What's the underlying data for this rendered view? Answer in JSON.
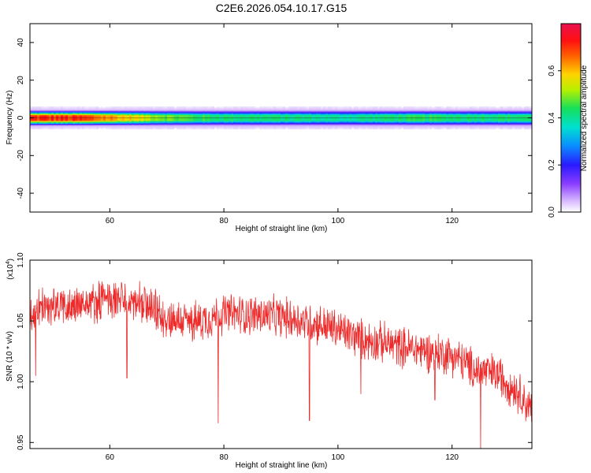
{
  "title": "C2E6.2026.054.10.17.G15",
  "colors": {
    "snr_line": "#ee2b2b",
    "axis": "#000000",
    "background": "#ffffff"
  },
  "chart_data": [
    {
      "type": "heatmap",
      "xlabel": "Height of straight line (km)",
      "ylabel": "Frequency (Hz)",
      "xlim": [
        46,
        134
      ],
      "ylim": [
        -50,
        50
      ],
      "x_ticks": [
        60,
        80,
        100,
        120
      ],
      "y_ticks": [
        40,
        20,
        0,
        -20,
        -40
      ],
      "x_tick_labels": [
        "60",
        "80",
        "100",
        "120"
      ],
      "y_tick_labels": [
        "40",
        "20",
        "0",
        "-20",
        "-40"
      ],
      "band_center_hz": 0,
      "band_halfwidth_hz": 4,
      "amplitude_profile": {
        "x": [
          46,
          50,
          55,
          60,
          65,
          70,
          75,
          80,
          85,
          90,
          95,
          100,
          105,
          110,
          115,
          120,
          125,
          130,
          134
        ],
        "peak": [
          0.7,
          0.7,
          0.69,
          0.62,
          0.55,
          0.48,
          0.44,
          0.42,
          0.42,
          0.41,
          0.4,
          0.38,
          0.4,
          0.42,
          0.43,
          0.42,
          0.42,
          0.42,
          0.42
        ]
      },
      "colorbar": {
        "label": "Normalized spectral amplitude",
        "min": 0.0,
        "max": 0.8,
        "ticks": [
          0.0,
          0.2,
          0.4,
          0.6
        ],
        "tick_labels": [
          "0.0",
          "0.2",
          "0.4",
          "0.6"
        ],
        "colormap": "rainbow"
      }
    },
    {
      "type": "line",
      "xlabel": "Height of straight line (km)",
      "ylabel": "SNR (10 * v/v)",
      "ylabel_exponent_base": "(x10",
      "ylabel_exponent_power": "4",
      "ylabel_exponent_close": ")",
      "xlim": [
        46,
        134
      ],
      "ylim": [
        0.945,
        1.1
      ],
      "x_ticks": [
        60,
        80,
        100,
        120
      ],
      "x_tick_labels": [
        "60",
        "80",
        "100",
        "120"
      ],
      "y_ticks": [
        0.95,
        1.0,
        1.05,
        1.1
      ],
      "y_tick_labels": [
        "0.95",
        "1.00",
        "1.05",
        "1.10"
      ],
      "series": [
        {
          "trend": {
            "x": [
              46,
              50,
              55,
              60,
              63,
              66,
              70,
              75,
              80,
              85,
              88,
              92,
              96,
              100,
              104,
              108,
              112,
              116,
              120,
              124,
              128,
              132,
              134
            ],
            "y": [
              1.056,
              1.062,
              1.063,
              1.068,
              1.067,
              1.062,
              1.052,
              1.049,
              1.056,
              1.055,
              1.054,
              1.052,
              1.048,
              1.043,
              1.035,
              1.032,
              1.028,
              1.025,
              1.022,
              1.01,
              1.006,
              0.99,
              0.975
            ]
          },
          "noise_amplitude": 0.014,
          "dips": [
            {
              "x": 47,
              "y": 1.005
            },
            {
              "x": 63,
              "y": 1.003
            },
            {
              "x": 79,
              "y": 0.966
            },
            {
              "x": 95,
              "y": 0.968
            },
            {
              "x": 104,
              "y": 0.99
            },
            {
              "x": 117,
              "y": 0.985
            },
            {
              "x": 125,
              "y": 0.945
            }
          ]
        }
      ]
    }
  ]
}
